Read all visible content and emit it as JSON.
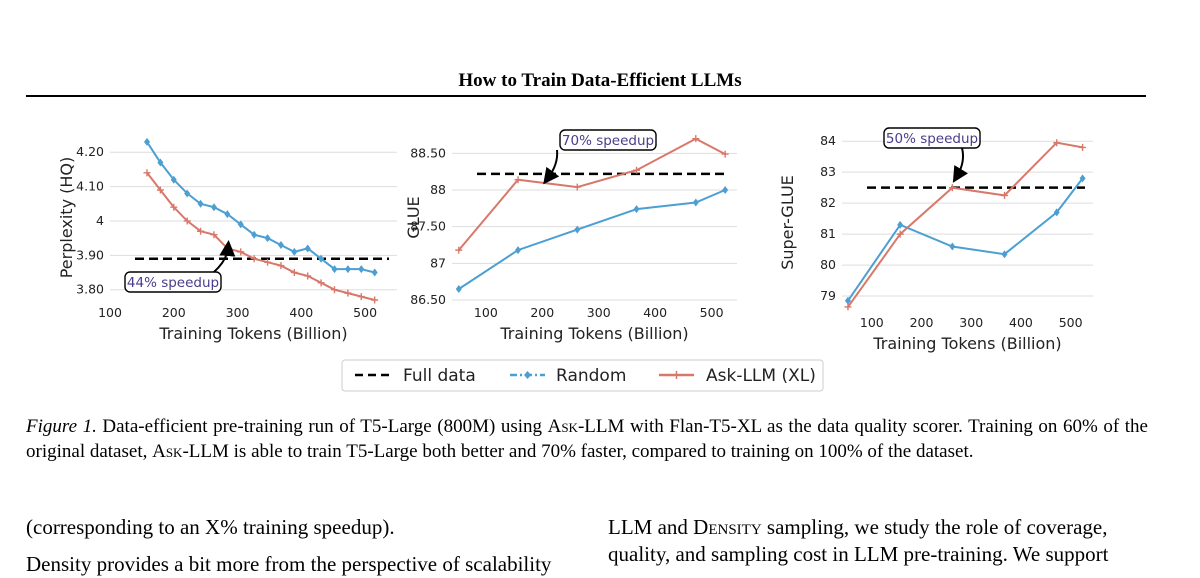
{
  "header": {
    "title": "How to Train Data-Efficient LLMs"
  },
  "chart_data": [
    {
      "type": "line",
      "xlabel": "Training Tokens (Billion)",
      "ylabel": "Perplexity (HQ)",
      "xlim": [
        100,
        550
      ],
      "ylim": [
        3.77,
        4.25
      ],
      "xticks": [
        "100",
        "200",
        "300",
        "400",
        "500"
      ],
      "yticks": [
        "3.80",
        "3.90",
        "4",
        "4.10",
        "4.20"
      ],
      "ytick_values": [
        3.8,
        3.9,
        4.0,
        4.1,
        4.2
      ],
      "xtick_values": [
        100,
        200,
        300,
        400,
        500
      ],
      "grid": "horizontal",
      "reference_line": {
        "name": "Full data",
        "y": 3.89
      },
      "series": [
        {
          "name": "Random",
          "x": [
            158,
            179,
            200,
            221,
            242,
            263,
            284,
            305,
            326,
            347,
            368,
            389,
            410,
            431,
            452,
            473,
            494,
            515
          ],
          "y": [
            4.23,
            4.17,
            4.12,
            4.08,
            4.05,
            4.04,
            4.02,
            3.99,
            3.96,
            3.95,
            3.93,
            3.91,
            3.92,
            3.89,
            3.86,
            3.86,
            3.86,
            3.85
          ]
        },
        {
          "name": "Ask-LLM (XL)",
          "x": [
            158,
            179,
            200,
            221,
            242,
            263,
            284,
            305,
            326,
            347,
            368,
            389,
            410,
            431,
            452,
            473,
            494,
            515
          ],
          "y": [
            4.14,
            4.09,
            4.04,
            4.0,
            3.97,
            3.96,
            3.92,
            3.91,
            3.89,
            3.88,
            3.87,
            3.85,
            3.84,
            3.82,
            3.8,
            3.79,
            3.78,
            3.77
          ]
        }
      ],
      "annotation": {
        "text": "44% speedup",
        "x": 298,
        "y": 3.89
      }
    },
    {
      "type": "line",
      "xlabel": "Training Tokens (Billion)",
      "ylabel": "GLUE",
      "xlim": [
        40,
        545
      ],
      "ylim": [
        86.5,
        88.75
      ],
      "xticks": [
        "100",
        "200",
        "300",
        "400",
        "500"
      ],
      "yticks": [
        "86.50",
        "87",
        "87.50",
        "88",
        "88.50"
      ],
      "ytick_values": [
        86.5,
        87.0,
        87.5,
        88.0,
        88.5
      ],
      "xtick_values": [
        100,
        200,
        300,
        400,
        500
      ],
      "grid": "horizontal",
      "reference_line": {
        "name": "Full data",
        "y": 88.22
      },
      "series": [
        {
          "name": "Random",
          "x": [
            52,
            157,
            262,
            367,
            472,
            524
          ],
          "y": [
            86.65,
            87.18,
            87.46,
            87.74,
            87.83,
            88.0
          ]
        },
        {
          "name": "Ask-LLM (XL)",
          "x": [
            52,
            157,
            262,
            367,
            472,
            524
          ],
          "y": [
            87.18,
            88.14,
            88.04,
            88.27,
            88.7,
            88.49
          ]
        }
      ],
      "annotation": {
        "text": "70% speedup",
        "x": 157,
        "y": 88.22
      }
    },
    {
      "type": "line",
      "xlabel": "Training Tokens (Billion)",
      "ylabel": "Super-GLUE",
      "xlim": [
        40,
        545
      ],
      "ylim": [
        78.55,
        84.2
      ],
      "xticks": [
        "100",
        "200",
        "300",
        "400",
        "500"
      ],
      "yticks": [
        "79",
        "80",
        "81",
        "82",
        "83",
        "84"
      ],
      "ytick_values": [
        79,
        80,
        81,
        82,
        83,
        84
      ],
      "xtick_values": [
        100,
        200,
        300,
        400,
        500
      ],
      "grid": "horizontal",
      "reference_line": {
        "name": "Full data",
        "y": 82.5
      },
      "series": [
        {
          "name": "Random",
          "x": [
            52,
            157,
            262,
            367,
            472,
            524
          ],
          "y": [
            78.85,
            81.3,
            80.6,
            80.35,
            81.7,
            82.8
          ]
        },
        {
          "name": "Ask-LLM (XL)",
          "x": [
            52,
            157,
            262,
            367,
            472,
            524
          ],
          "y": [
            78.65,
            81.0,
            82.5,
            82.25,
            83.95,
            83.8
          ]
        }
      ],
      "annotation": {
        "text": "50% speedup",
        "x": 262,
        "y": 82.5
      }
    }
  ],
  "legend": {
    "full_data": "Full data",
    "random": "Random",
    "askllm": "Ask-LLM (XL)"
  },
  "colors": {
    "random": "#4c9fd3",
    "askllm": "#d8786a",
    "full_data": "#000000",
    "annotation_text": "#483d8b",
    "grid": "#dddddd"
  },
  "caption": {
    "label": "Figure 1.",
    "part1": " Data-efficient pre-training run of T5-Large (800M) using ",
    "askllm1": "Ask-LLM",
    "part2": " with Flan-T5-XL as the data quality scorer. Training on 60% of the original dataset, ",
    "askllm2": "Ask-LLM",
    "part3": " is able to train T5-Large both better and 70% faster, compared to training on 100% of the dataset."
  },
  "body": {
    "left_line1": "(corresponding to an X% training speedup).",
    "left_line2": "Density provides a bit more from the perspective of scalability",
    "right_line1_pre": "LLM and ",
    "right_line1_sc": "Density",
    "right_line1_post": " sampling, we study the role of coverage,",
    "right_line2": "quality, and sampling cost in LLM pre-training. We support"
  }
}
